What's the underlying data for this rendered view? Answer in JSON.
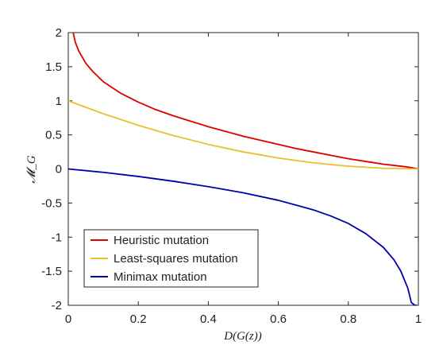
{
  "chart_data": {
    "type": "line",
    "title": "",
    "xlabel": "D(G(z))",
    "ylabel": "𝓜_G",
    "xlim": [
      0,
      1
    ],
    "ylim": [
      -2,
      2
    ],
    "xticks": [
      0,
      0.2,
      0.4,
      0.6,
      0.8,
      1
    ],
    "xtick_labels": [
      "0",
      "0.2",
      "0.4",
      "0.6",
      "0.8",
      "1"
    ],
    "yticks": [
      2,
      1.5,
      1,
      0.5,
      0,
      -0.5,
      -1,
      -1.5,
      -2
    ],
    "ytick_labels": [
      "2",
      "1.5",
      "1",
      "0.5",
      "0",
      "-0.5",
      "-1",
      "-1.5",
      "-2"
    ],
    "grid": false,
    "legend_position": "bottom-left",
    "series": [
      {
        "name": "Heuristic mutation",
        "color": "#dd0000",
        "x": [
          0.014,
          0.02,
          0.03,
          0.05,
          0.07,
          0.1,
          0.15,
          0.2,
          0.25,
          0.3,
          0.35,
          0.4,
          0.45,
          0.5,
          0.55,
          0.6,
          0.65,
          0.7,
          0.75,
          0.8,
          0.85,
          0.9,
          0.95,
          0.98,
          1.0
        ],
        "y": [
          2.0,
          1.86,
          1.73,
          1.55,
          1.43,
          1.28,
          1.11,
          0.98,
          0.87,
          0.78,
          0.7,
          0.62,
          0.55,
          0.48,
          0.42,
          0.36,
          0.3,
          0.25,
          0.2,
          0.15,
          0.11,
          0.07,
          0.04,
          0.02,
          0.0
        ]
      },
      {
        "name": "Least-squares mutation",
        "color": "#e8c030",
        "x": [
          0,
          0.1,
          0.2,
          0.3,
          0.4,
          0.5,
          0.6,
          0.7,
          0.8,
          0.9,
          1.0
        ],
        "y": [
          1.0,
          0.81,
          0.64,
          0.49,
          0.36,
          0.25,
          0.16,
          0.09,
          0.04,
          0.01,
          0.0
        ]
      },
      {
        "name": "Minimax mutation",
        "color": "#0000aa",
        "x": [
          0,
          0.1,
          0.2,
          0.3,
          0.4,
          0.5,
          0.6,
          0.7,
          0.75,
          0.8,
          0.85,
          0.9,
          0.93,
          0.95,
          0.97,
          0.98,
          0.99,
          0.995
        ],
        "y": [
          0.0,
          -0.05,
          -0.11,
          -0.18,
          -0.26,
          -0.35,
          -0.46,
          -0.6,
          -0.69,
          -0.8,
          -0.95,
          -1.15,
          -1.33,
          -1.5,
          -1.75,
          -1.96,
          -2.0,
          -2.0
        ]
      }
    ]
  }
}
